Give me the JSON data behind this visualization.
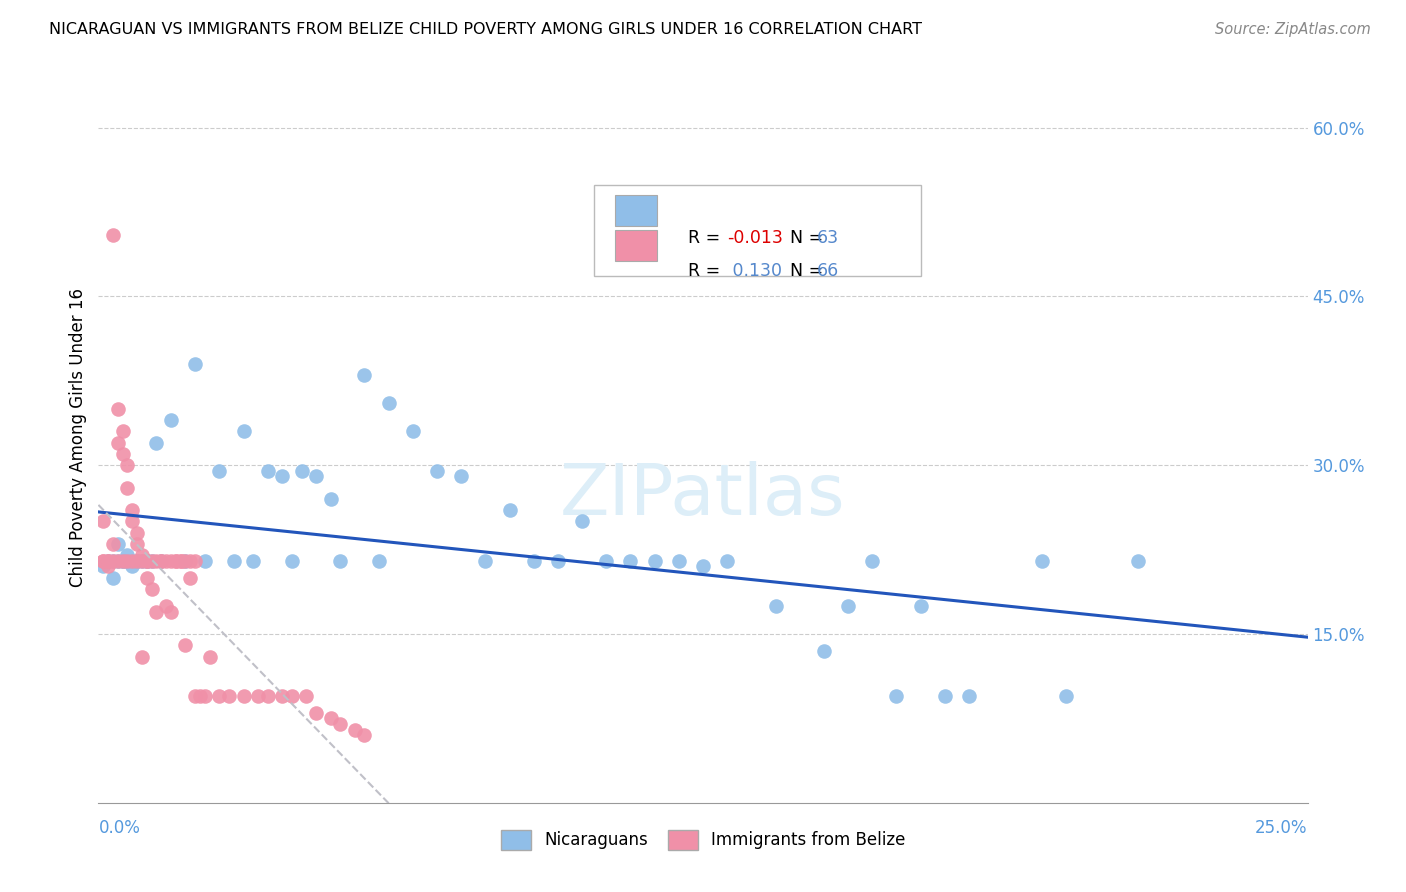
{
  "title": "NICARAGUAN VS IMMIGRANTS FROM BELIZE CHILD POVERTY AMONG GIRLS UNDER 16 CORRELATION CHART",
  "source": "Source: ZipAtlas.com",
  "ylabel": "Child Poverty Among Girls Under 16",
  "xlim": [
    0.0,
    0.25
  ],
  "ylim": [
    0.0,
    0.65
  ],
  "r_nicaraguan": -0.013,
  "r_belize": 0.13,
  "n_nicaraguan": 63,
  "n_belize": 66,
  "nicaraguan_color": "#90bee8",
  "belize_color": "#f090a8",
  "nicaraguan_line_color": "#2255bb",
  "belize_line_color": "#c0c0c8",
  "belize_line_style": "--",
  "nicaraguan_line_style": "-",
  "nic_x": [
    0.001,
    0.002,
    0.003,
    0.003,
    0.004,
    0.004,
    0.005,
    0.005,
    0.006,
    0.006,
    0.007,
    0.007,
    0.008,
    0.008,
    0.009,
    0.01,
    0.01,
    0.011,
    0.012,
    0.013,
    0.015,
    0.018,
    0.02,
    0.022,
    0.025,
    0.028,
    0.03,
    0.032,
    0.035,
    0.038,
    0.04,
    0.042,
    0.045,
    0.048,
    0.05,
    0.055,
    0.058,
    0.06,
    0.065,
    0.07,
    0.075,
    0.08,
    0.085,
    0.09,
    0.095,
    0.1,
    0.105,
    0.11,
    0.115,
    0.12,
    0.125,
    0.13,
    0.14,
    0.15,
    0.155,
    0.16,
    0.165,
    0.17,
    0.175,
    0.18,
    0.195,
    0.2,
    0.215
  ],
  "nic_y": [
    0.21,
    0.215,
    0.2,
    0.215,
    0.215,
    0.23,
    0.215,
    0.215,
    0.215,
    0.22,
    0.215,
    0.21,
    0.215,
    0.215,
    0.215,
    0.215,
    0.215,
    0.215,
    0.32,
    0.215,
    0.34,
    0.215,
    0.39,
    0.215,
    0.295,
    0.215,
    0.33,
    0.215,
    0.295,
    0.29,
    0.215,
    0.295,
    0.29,
    0.27,
    0.215,
    0.38,
    0.215,
    0.355,
    0.33,
    0.295,
    0.29,
    0.215,
    0.26,
    0.215,
    0.215,
    0.25,
    0.215,
    0.215,
    0.215,
    0.215,
    0.21,
    0.215,
    0.175,
    0.135,
    0.175,
    0.215,
    0.095,
    0.175,
    0.095,
    0.095,
    0.215,
    0.095,
    0.215
  ],
  "bel_x": [
    0.001,
    0.001,
    0.001,
    0.002,
    0.002,
    0.002,
    0.003,
    0.003,
    0.003,
    0.004,
    0.004,
    0.004,
    0.005,
    0.005,
    0.005,
    0.006,
    0.006,
    0.006,
    0.007,
    0.007,
    0.007,
    0.008,
    0.008,
    0.008,
    0.009,
    0.009,
    0.009,
    0.01,
    0.01,
    0.01,
    0.011,
    0.011,
    0.012,
    0.012,
    0.013,
    0.013,
    0.014,
    0.014,
    0.015,
    0.015,
    0.016,
    0.016,
    0.017,
    0.017,
    0.018,
    0.018,
    0.019,
    0.019,
    0.02,
    0.02,
    0.021,
    0.022,
    0.023,
    0.025,
    0.027,
    0.03,
    0.033,
    0.035,
    0.038,
    0.04,
    0.043,
    0.045,
    0.048,
    0.05,
    0.053,
    0.055
  ],
  "bel_y": [
    0.215,
    0.25,
    0.215,
    0.215,
    0.215,
    0.21,
    0.23,
    0.44,
    0.215,
    0.35,
    0.32,
    0.215,
    0.33,
    0.31,
    0.215,
    0.3,
    0.28,
    0.215,
    0.26,
    0.25,
    0.215,
    0.24,
    0.23,
    0.215,
    0.22,
    0.215,
    0.13,
    0.215,
    0.2,
    0.215,
    0.215,
    0.19,
    0.215,
    0.17,
    0.215,
    0.215,
    0.215,
    0.175,
    0.215,
    0.17,
    0.215,
    0.215,
    0.215,
    0.215,
    0.215,
    0.14,
    0.215,
    0.2,
    0.215,
    0.095,
    0.095,
    0.095,
    0.13,
    0.095,
    0.095,
    0.095,
    0.095,
    0.095,
    0.095,
    0.095,
    0.095,
    0.08,
    0.075,
    0.07,
    0.065,
    0.06
  ],
  "ytick_vals": [
    0.15,
    0.3,
    0.45,
    0.6
  ],
  "ytick_labels": [
    "15.0%",
    "30.0%",
    "45.0%",
    "60.0%"
  ],
  "watermark": "ZIPatlas",
  "watermark_color": "#ddeef8",
  "legend_r1_val": "-0.013",
  "legend_r1_color": "#dd0000",
  "legend_r2_val": "0.130",
  "legend_r2_color": "#5588cc",
  "legend_n1": "63",
  "legend_n2": "66",
  "legend_n_color": "#5588cc"
}
